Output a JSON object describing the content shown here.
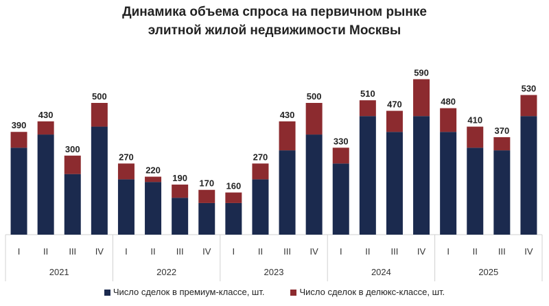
{
  "chart_data": {
    "type": "bar",
    "stacked": true,
    "title_lines": [
      "Динамика объема спроса на первичном рынке",
      "элитной жилой недвижимости Москвы"
    ],
    "years": [
      "2021",
      "2022",
      "2023",
      "2024",
      "2025"
    ],
    "quarters": [
      "I",
      "II",
      "III",
      "IV"
    ],
    "series": [
      {
        "name": "Число сделок в премиум-классе, шт.",
        "color": "#1b2a4e",
        "values": [
          330,
          380,
          230,
          410,
          210,
          200,
          140,
          120,
          120,
          210,
          320,
          380,
          270,
          450,
          390,
          450,
          390,
          330,
          320,
          450
        ]
      },
      {
        "name": "Число сделок в делюкс-классе, шт.",
        "color": "#8c2b2f",
        "values": [
          60,
          50,
          70,
          90,
          60,
          20,
          50,
          50,
          40,
          60,
          110,
          120,
          60,
          60,
          80,
          140,
          90,
          80,
          50,
          80
        ]
      }
    ],
    "totals": [
      390,
      430,
      300,
      500,
      270,
      220,
      190,
      170,
      160,
      270,
      430,
      500,
      330,
      510,
      470,
      590,
      480,
      410,
      370,
      530
    ],
    "ylim": [
      0,
      600
    ],
    "grid": false,
    "legend": "bottom"
  }
}
